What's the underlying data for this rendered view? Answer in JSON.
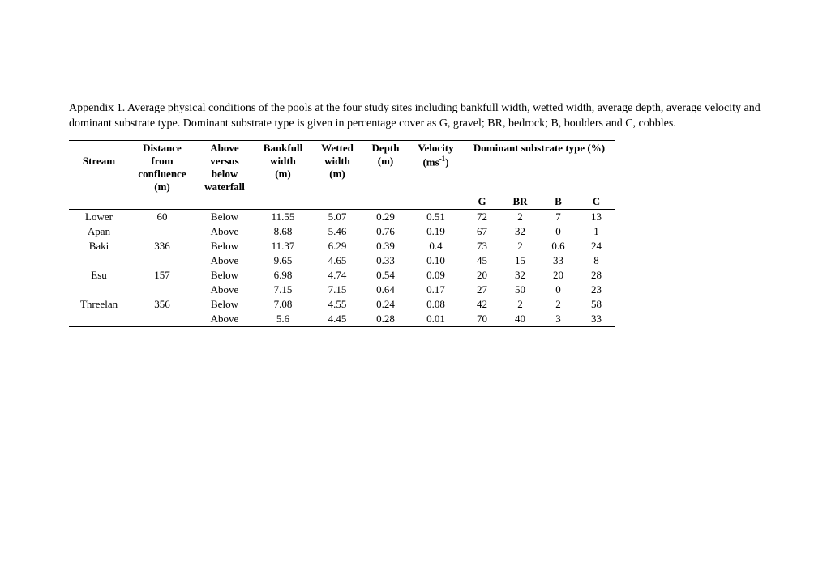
{
  "caption": "Appendix 1. Average physical conditions of the pools at the four study sites including bankfull width, wetted width, average depth, average velocity and dominant substrate type. Dominant substrate type is given in percentage cover as G, gravel; BR, bedrock; B, boulders and C, cobbles.",
  "headers": {
    "stream": "Stream",
    "distance": "Distance from confluence (m)",
    "position": "Above versus below waterfall",
    "bankfull": "Bankfull width (m)",
    "wetted": "Wetted width (m)",
    "depth": "Depth (m)",
    "velocity_pre": "Velocity (ms",
    "velocity_sup": "-1",
    "velocity_post": ")",
    "substrate": "Dominant substrate type (%)",
    "G": "G",
    "BR": "BR",
    "B": "B",
    "C": "C"
  },
  "rows": [
    {
      "stream": "Lower Apan",
      "distance": "60",
      "position": "Below",
      "bankfull": "11.55",
      "wetted": "5.07",
      "depth": "0.29",
      "velocity": "0.51",
      "g": "72",
      "br": "2",
      "b": "7",
      "c": "13"
    },
    {
      "stream": "",
      "distance": "",
      "position": "Above",
      "bankfull": "8.68",
      "wetted": "5.46",
      "depth": "0.76",
      "velocity": "0.19",
      "g": "67",
      "br": "32",
      "b": "0",
      "c": "1"
    },
    {
      "stream": "Baki",
      "distance": "336",
      "position": "Below",
      "bankfull": "11.37",
      "wetted": "6.29",
      "depth": "0.39",
      "velocity": "0.4",
      "g": "73",
      "br": "2",
      "b": "0.6",
      "c": "24"
    },
    {
      "stream": "",
      "distance": "",
      "position": "Above",
      "bankfull": "9.65",
      "wetted": "4.65",
      "depth": "0.33",
      "velocity": "0.10",
      "g": "45",
      "br": "15",
      "b": "33",
      "c": "8"
    },
    {
      "stream": "Esu",
      "distance": "157",
      "position": "Below",
      "bankfull": "6.98",
      "wetted": "4.74",
      "depth": "0.54",
      "velocity": "0.09",
      "g": "20",
      "br": "32",
      "b": "20",
      "c": "28"
    },
    {
      "stream": "",
      "distance": "",
      "position": "Above",
      "bankfull": "7.15",
      "wetted": "7.15",
      "depth": "0.64",
      "velocity": "0.17",
      "g": "27",
      "br": "50",
      "b": "0",
      "c": "23"
    },
    {
      "stream": "Threelan",
      "distance": "356",
      "position": "Below",
      "bankfull": "7.08",
      "wetted": "4.55",
      "depth": "0.24",
      "velocity": "0.08",
      "g": "42",
      "br": "2",
      "b": "2",
      "c": "58"
    },
    {
      "stream": "",
      "distance": "",
      "position": "Above",
      "bankfull": "5.6",
      "wetted": "4.45",
      "depth": "0.28",
      "velocity": "0.01",
      "g": "70",
      "br": "40",
      "b": "3",
      "c": "33"
    }
  ]
}
